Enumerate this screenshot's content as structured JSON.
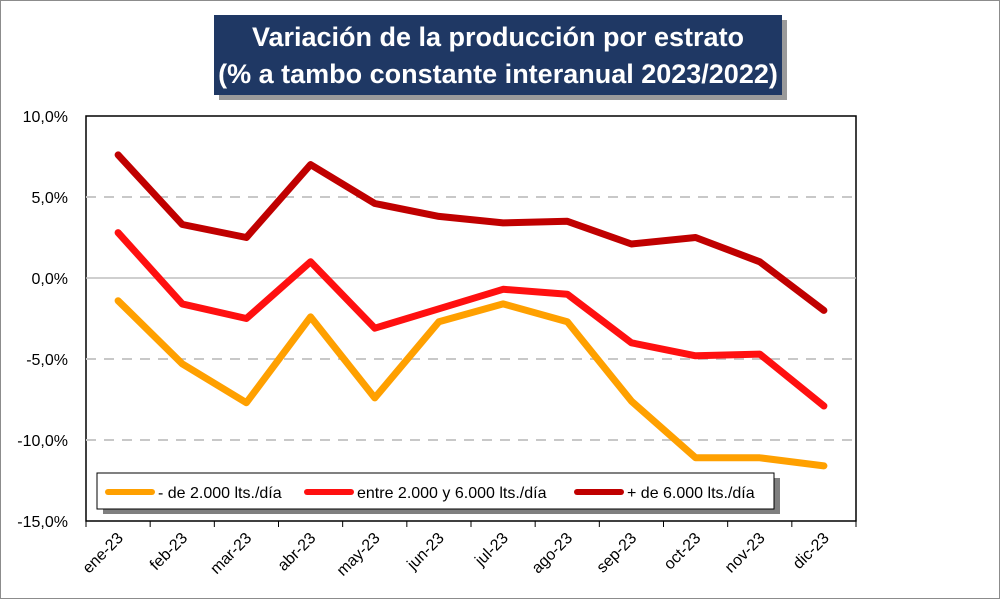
{
  "chart_data": {
    "type": "line",
    "title_line1": "Variación de la producción por estrato",
    "title_line2": "(% a tambo constante interanual 2023/2022)",
    "xlabel": "",
    "ylabel": "",
    "categories": [
      "ene-23",
      "feb-23",
      "mar-23",
      "abr-23",
      "may-23",
      "jun-23",
      "jul-23",
      "ago-23",
      "sep-23",
      "oct-23",
      "nov-23",
      "dic-23"
    ],
    "ylim": [
      -15,
      10
    ],
    "yticks": [
      10,
      5,
      0,
      -5,
      -10,
      -15
    ],
    "ytick_labels": [
      "10,0%",
      "5,0%",
      "0,0%",
      "-5,0%",
      "-10,0%",
      "-15,0%"
    ],
    "grid": "horizontal-dashed",
    "legend_position": "bottom-left",
    "series": [
      {
        "name": "- de 2.000 lts./día",
        "color": "#ffa000",
        "values": [
          -1.4,
          -5.3,
          -7.7,
          -2.4,
          -7.4,
          -2.7,
          -1.6,
          -2.7,
          -7.6,
          -11.1,
          -11.1,
          -11.6
        ]
      },
      {
        "name": "entre 2.000 y 6.000 lts./día",
        "color": "#ff1010",
        "values": [
          2.8,
          -1.6,
          -2.5,
          1.0,
          -3.1,
          -1.9,
          -0.7,
          -1.0,
          -4.0,
          -4.8,
          -4.7,
          -7.9
        ]
      },
      {
        "name": "+ de 6.000 lts./día",
        "color": "#c00000",
        "values": [
          7.6,
          3.3,
          2.5,
          7.0,
          4.6,
          3.8,
          3.4,
          3.5,
          2.1,
          2.5,
          1.0,
          -2.0
        ]
      }
    ]
  },
  "colors": {
    "title_bg": "#1f3864",
    "title_text": "#ffffff",
    "plot_border": "#000000",
    "gridline": "#c8c8c8",
    "zero_line": "#bfbfbf"
  }
}
